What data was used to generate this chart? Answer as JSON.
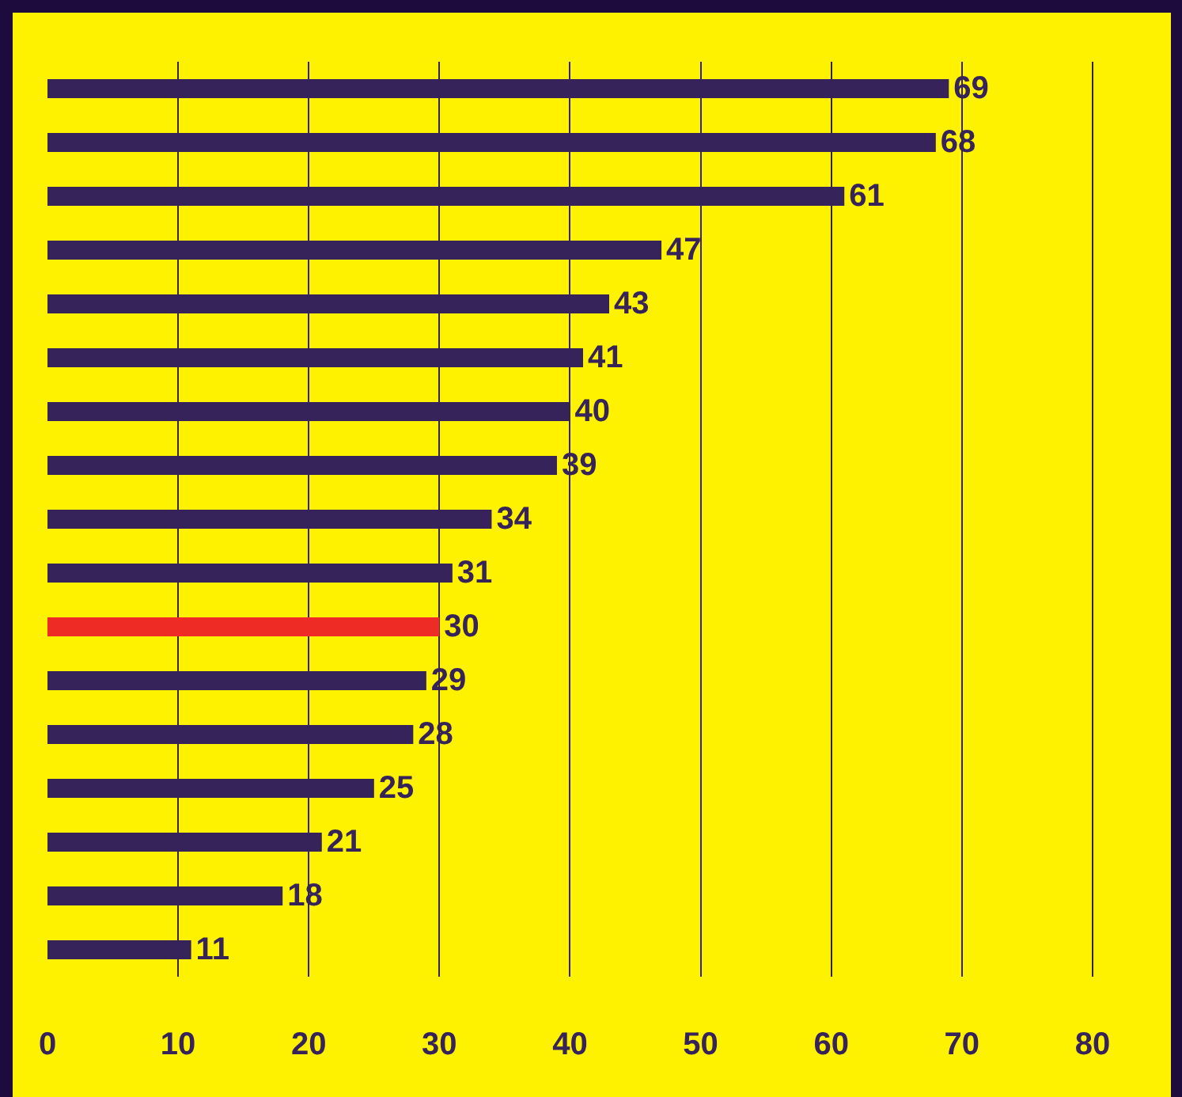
{
  "chart_data": {
    "type": "bar",
    "orientation": "horizontal",
    "categories": [
      null,
      null,
      null,
      null,
      null,
      null,
      null,
      null,
      null,
      null,
      null,
      null,
      null,
      null,
      null,
      null,
      null
    ],
    "values": [
      69,
      68,
      61,
      47,
      43,
      41,
      40,
      39,
      34,
      31,
      30,
      29,
      28,
      25,
      21,
      18,
      11
    ],
    "colors": [
      "#35235a",
      "#35235a",
      "#35235a",
      "#35235a",
      "#35235a",
      "#35235a",
      "#35235a",
      "#35235a",
      "#35235a",
      "#35235a",
      "#ee2b24",
      "#35235a",
      "#35235a",
      "#35235a",
      "#35235a",
      "#35235a",
      "#35235a"
    ],
    "data_labels": true,
    "xlim": [
      0,
      86
    ],
    "xticks": [
      0,
      10,
      20,
      30,
      40,
      50,
      60,
      70,
      80
    ],
    "grid": "x",
    "tick_labels": "x"
  }
}
